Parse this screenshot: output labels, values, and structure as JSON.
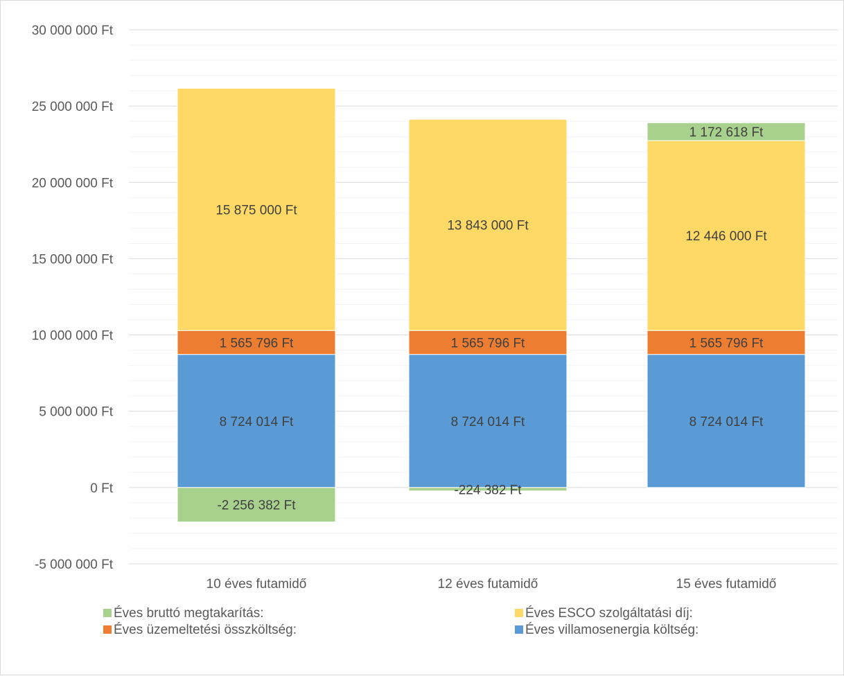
{
  "chart_data": {
    "type": "bar",
    "stacked": true,
    "categories": [
      "10 éves futamidő",
      "12 éves futamidő",
      "15 éves futamidő"
    ],
    "series": [
      {
        "name": "Éves villamosenergia költség:",
        "color": "#5b9bd5",
        "values": [
          8724014,
          8724014,
          8724014
        ],
        "labels": [
          "8 724 014 Ft",
          "8 724 014 Ft",
          "8 724 014 Ft"
        ]
      },
      {
        "name": "Éves üzemeltetési összköltség:",
        "color": "#ed7d31",
        "values": [
          1565796,
          1565796,
          1565796
        ],
        "labels": [
          "1 565 796 Ft",
          "1 565 796 Ft",
          "1 565 796 Ft"
        ]
      },
      {
        "name": "Éves ESCO szolgáltatási díj:",
        "color": "#ffd966",
        "values": [
          15875000,
          13843000,
          12446000
        ],
        "labels": [
          "15 875 000 Ft",
          "13 843 000 Ft",
          "12 446 000 Ft"
        ]
      },
      {
        "name": "Éves bruttó megtakarítás:",
        "color": "#a9d18e",
        "values": [
          -2256382,
          -224382,
          1172618
        ],
        "labels": [
          "-2 256 382 Ft",
          "-224 382 Ft",
          "1 172 618 Ft"
        ]
      }
    ],
    "ylim": [
      -5000000,
      30000000
    ],
    "yticks": [
      -5000000,
      0,
      5000000,
      10000000,
      15000000,
      20000000,
      25000000,
      30000000
    ],
    "ytick_labels": [
      "-5 000 000 Ft",
      "0 Ft",
      "5 000 000 Ft",
      "10 000 000 Ft",
      "15 000 000 Ft",
      "20 000 000 Ft",
      "25 000 000 Ft",
      "30 000 000 Ft"
    ],
    "minor_gridlines": true,
    "legend": {
      "position": "bottom",
      "order": [
        "Éves bruttó megtakarítás:",
        "Éves ESCO szolgáltatási díj:",
        "Éves üzemeltetési összköltség:",
        "Éves villamosenergia költség:"
      ]
    }
  }
}
